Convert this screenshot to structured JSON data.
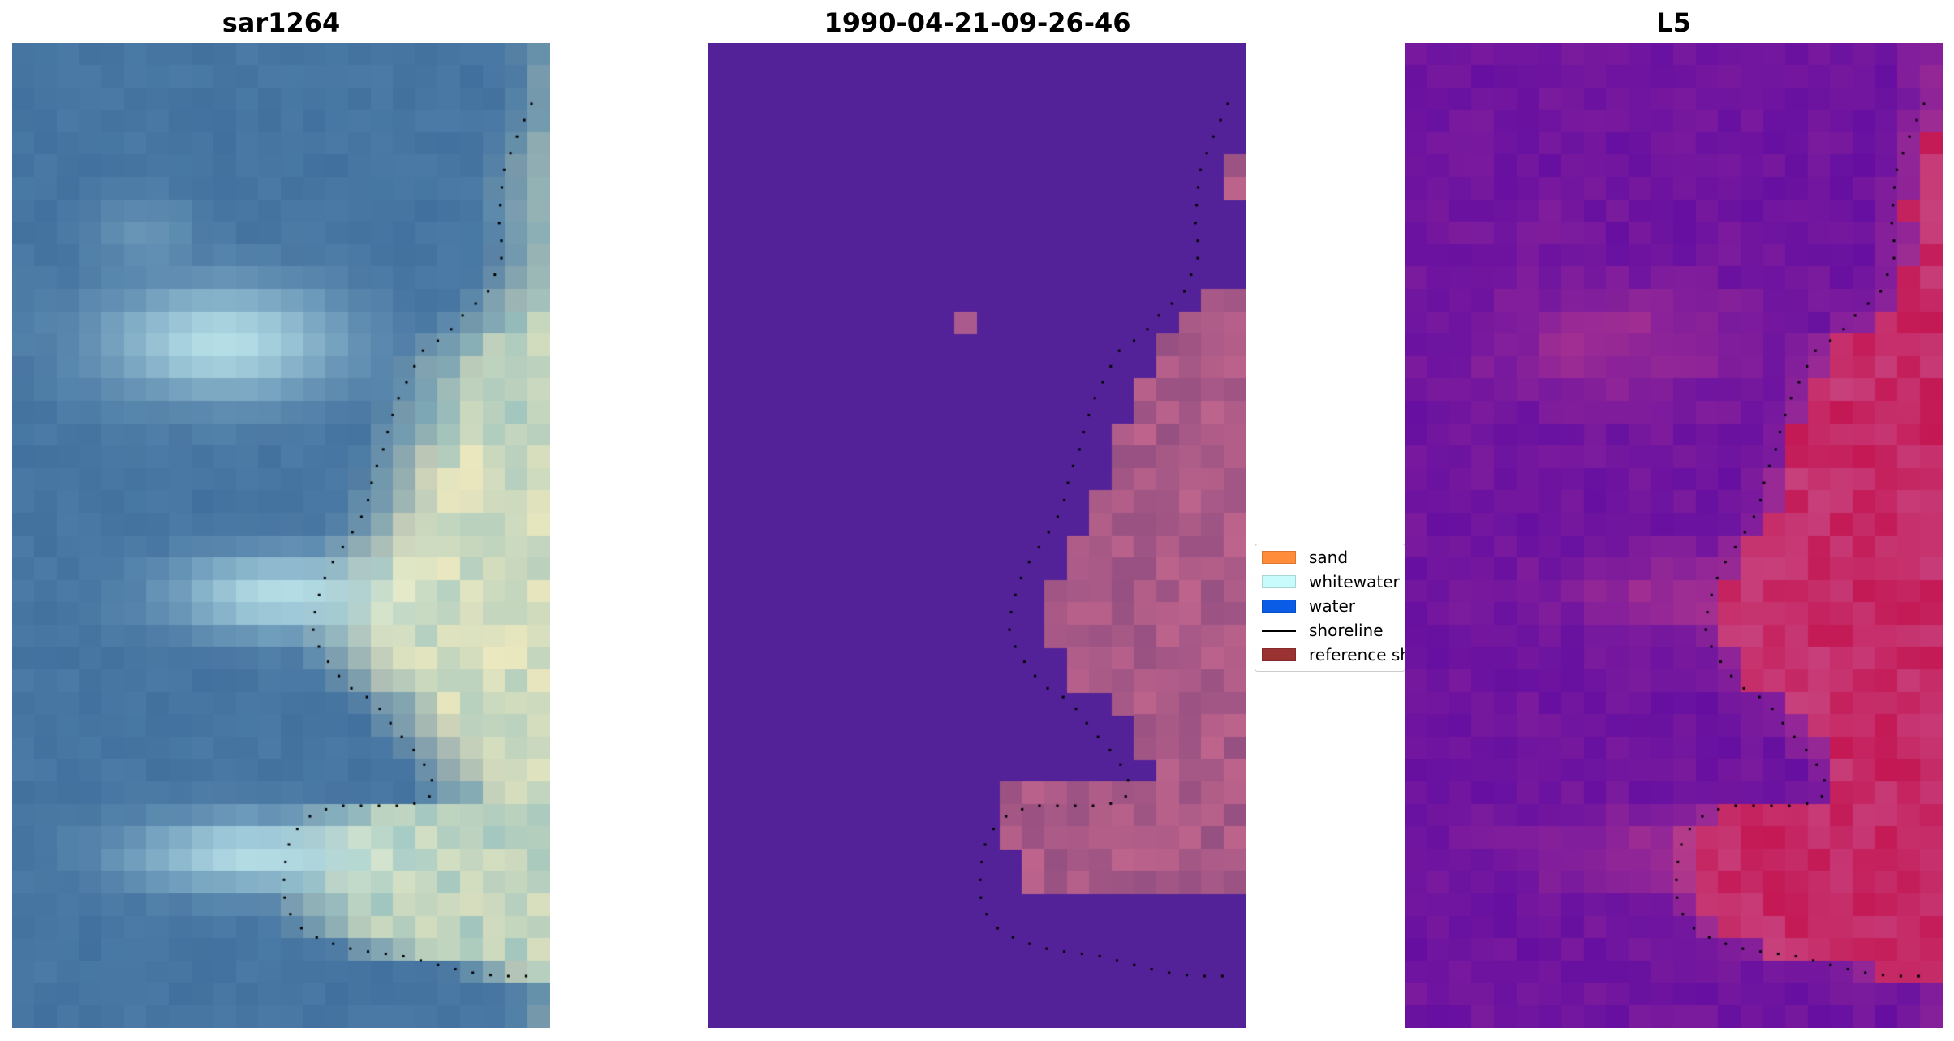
{
  "panels": [
    {
      "title": "sar1264",
      "rendering": "rgb-composite"
    },
    {
      "title": "1990-04-21-09-26-46",
      "rendering": "classified"
    },
    {
      "title": "L5",
      "rendering": "plasma-colormap"
    }
  ],
  "legend": {
    "items": [
      {
        "label": "sand",
        "kind": "patch",
        "color": "#ff8c3a"
      },
      {
        "label": "whitewater",
        "kind": "patch",
        "color": "#c8fbfb"
      },
      {
        "label": "water",
        "kind": "patch",
        "color": "#0a5ce6"
      },
      {
        "label": "shoreline",
        "kind": "line",
        "color": "#000000"
      },
      {
        "label": "reference shoreline",
        "kind": "patch",
        "color": "#9b3232"
      }
    ]
  },
  "colors": {
    "water_class": "#542298",
    "sand_overlay": "#a35a8a",
    "shoreline_dots": "#000000"
  }
}
